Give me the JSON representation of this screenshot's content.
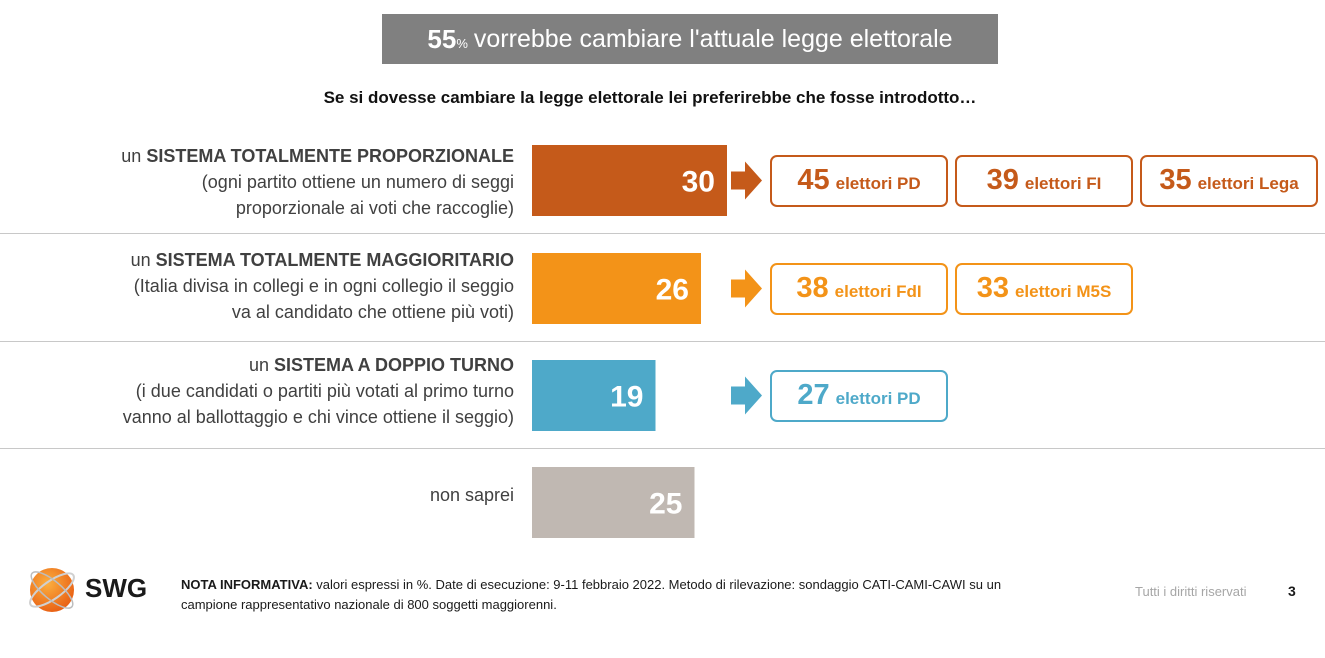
{
  "headline": {
    "pct": "55",
    "pct_sign": "%",
    "text": "vorrebbe cambiare l'attuale legge elettorale"
  },
  "subtitle": "Se si dovesse cambiare la legge elettorale lei preferirebbe che fosse introdotto…",
  "rows": [
    {
      "prefix": "un",
      "title": "SISTEMA TOTALMENTE PROPORZIONALE",
      "desc1": "(ogni partito ottiene un numero di seggi",
      "desc2": "proporzionale ai voti che raccoglie)"
    },
    {
      "prefix": "un",
      "title": "SISTEMA TOTALMENTE MAGGIORITARIO",
      "desc1": "(Italia divisa in collegi e in ogni collegio il seggio",
      "desc2": "va al candidato che ottiene più voti)"
    },
    {
      "prefix": "un",
      "title": "SISTEMA A DOPPIO TURNO",
      "desc1": "(i due candidati o partiti più votati al primo turno",
      "desc2": "vanno al ballottaggio e chi vince ottiene il seggio)"
    },
    {
      "prefix": "non saprei",
      "title": "",
      "desc1": "",
      "desc2": ""
    }
  ],
  "chart_data": {
    "type": "bar",
    "orientation": "horizontal",
    "categories": [
      "un SISTEMA TOTALMENTE PROPORZIONALE",
      "un SISTEMA TOTALMENTE MAGGIORITARIO",
      "un SISTEMA A DOPPIO TURNO",
      "non saprei"
    ],
    "values": [
      30,
      26,
      19,
      25
    ],
    "value_labels": [
      "30",
      "26",
      "19",
      "25"
    ],
    "colors": [
      "#c55a1a",
      "#f39318",
      "#4ea9c9",
      "#c0b8b2"
    ],
    "breakdowns": [
      [
        {
          "value": "45",
          "label": "elettori PD"
        },
        {
          "value": "39",
          "label": "elettori FI"
        },
        {
          "value": "35",
          "label": "elettori Lega"
        }
      ],
      [
        {
          "value": "38",
          "label": "elettori FdI"
        },
        {
          "value": "33",
          "label": "elettori M5S"
        }
      ],
      [
        {
          "value": "27",
          "label": "elettori PD"
        }
      ],
      []
    ],
    "box_colors": [
      "#c55a1a",
      "#f39318",
      "#4ea9c9"
    ],
    "unit": "%"
  },
  "footer": {
    "logo_text": "SWG",
    "note_label": "NOTA INFORMATIVA:",
    "note_text": " valori espressi in %. Date di esecuzione: 9-11 febbraio 2022. Metodo di rilevazione: sondaggio CATI-CAMI-CAWI su un campione rappresentativo nazionale di 800 soggetti maggiorenni.",
    "rights": "Tutti i diritti riservati",
    "page": "3"
  }
}
